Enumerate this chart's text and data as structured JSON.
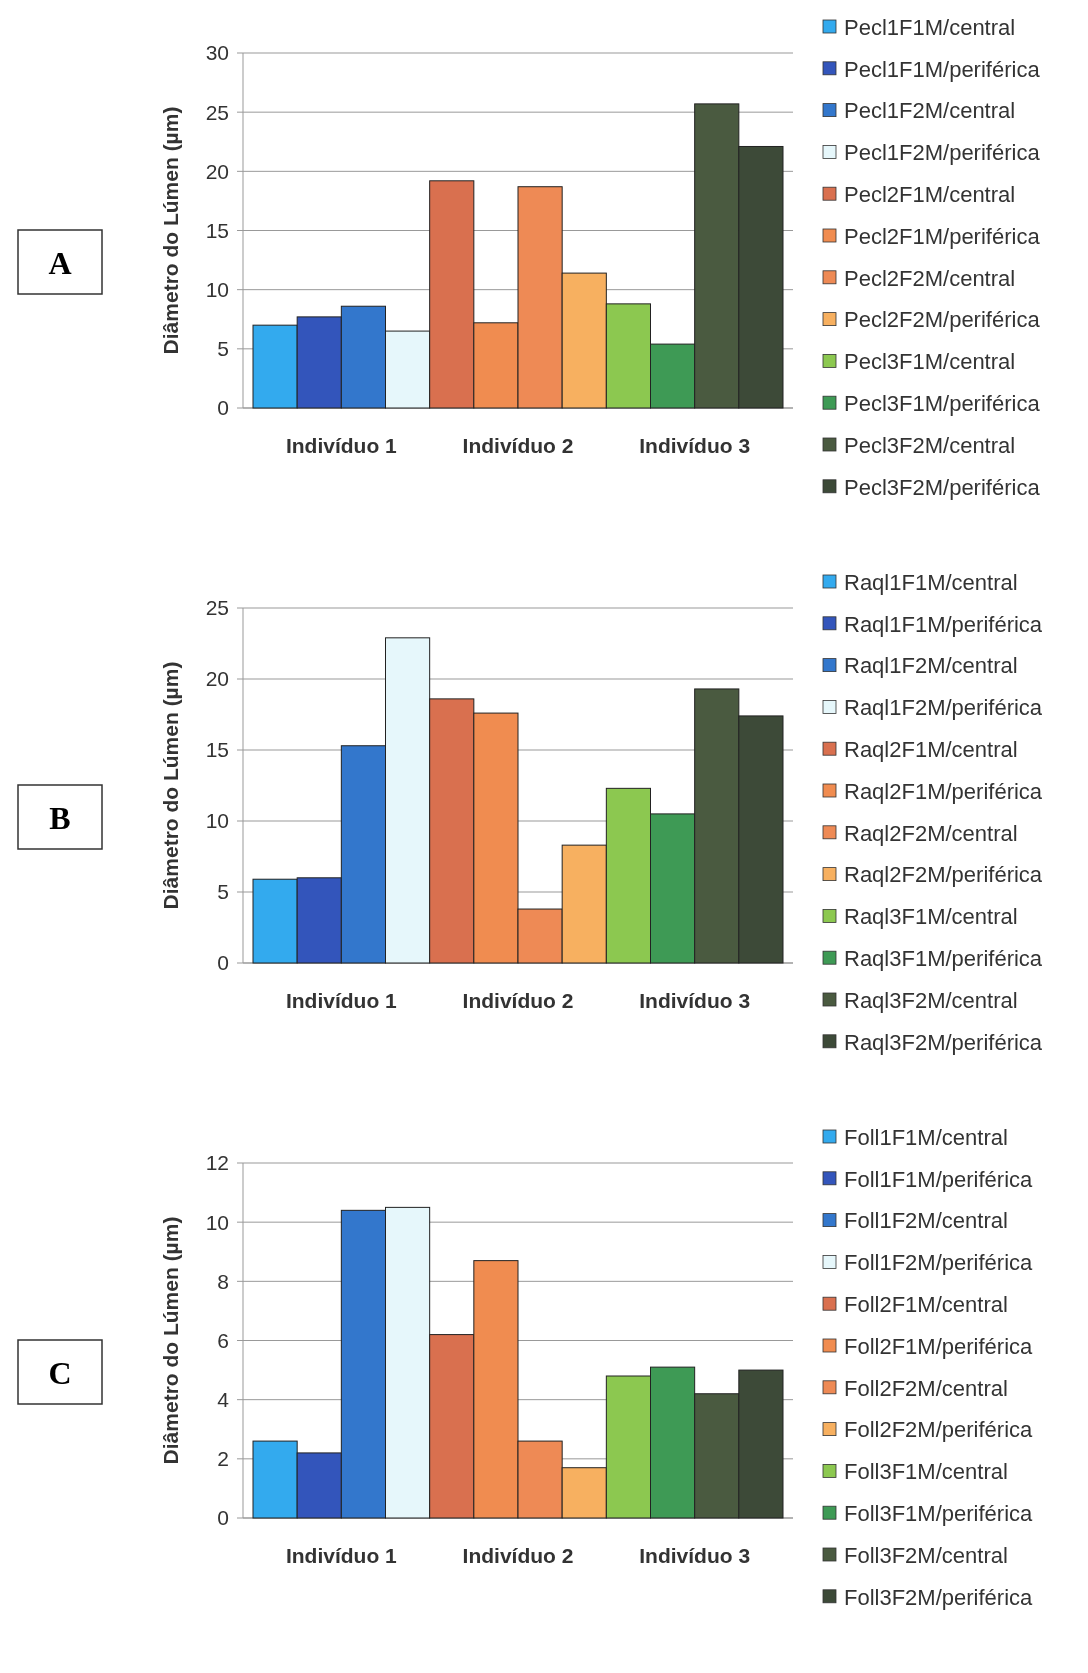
{
  "chart_data": [
    {
      "type": "bar",
      "title": "A",
      "ylabel": "Diâmetro do Lúmen (µm)",
      "categories": [
        "Indivíduo 1",
        "Indivíduo 2",
        "Indivíduo 3"
      ],
      "ylim": [
        0,
        30
      ],
      "yticks": [
        0,
        5,
        10,
        15,
        20,
        25,
        30
      ],
      "grid": "y",
      "legend": "right",
      "series": [
        {
          "name": "Pecl1F1M/central",
          "color": "#33aaee",
          "values": [
            7.0,
            null,
            null
          ]
        },
        {
          "name": "Pecl1F1M/periférica",
          "color": "#3355bb",
          "values": [
            7.7,
            null,
            null
          ]
        },
        {
          "name": "Pecl1F2M/central",
          "color": "#3377cc",
          "values": [
            8.6,
            null,
            null
          ]
        },
        {
          "name": "Pecl1F2M/periférica",
          "color": "#e6f7fb",
          "values": [
            6.5,
            null,
            null
          ]
        },
        {
          "name": "Pecl2F1M/central",
          "color": "#d9704f",
          "values": [
            null,
            19.2,
            null
          ]
        },
        {
          "name": "Pecl2F1M/periférica",
          "color": "#f08c50",
          "values": [
            null,
            7.2,
            null
          ]
        },
        {
          "name": "Pecl2F2M/central",
          "color": "#ee8a55",
          "values": [
            null,
            18.7,
            null
          ]
        },
        {
          "name": "Pecl2F2M/periférica",
          "color": "#f7b060",
          "values": [
            null,
            11.4,
            null
          ]
        },
        {
          "name": "Pecl3F1M/central",
          "color": "#8cc850",
          "values": [
            null,
            null,
            8.8
          ]
        },
        {
          "name": "Pecl3F1M/periférica",
          "color": "#3e9a55",
          "values": [
            null,
            null,
            5.4
          ]
        },
        {
          "name": "Pecl3F2M/central",
          "color": "#4a5a40",
          "values": [
            null,
            null,
            25.7
          ]
        },
        {
          "name": "Pecl3F2M/periférica",
          "color": "#3d4a38",
          "values": [
            null,
            null,
            22.1
          ]
        }
      ]
    },
    {
      "type": "bar",
      "title": "B",
      "ylabel": "Diâmetro do Lúmen (µm)",
      "categories": [
        "Indivíduo 1",
        "Indivíduo 2",
        "Indivíduo 3"
      ],
      "ylim": [
        0,
        25
      ],
      "yticks": [
        0,
        5,
        10,
        15,
        20,
        25
      ],
      "grid": "y",
      "legend": "right",
      "series": [
        {
          "name": "Raql1F1M/central",
          "color": "#33aaee",
          "values": [
            5.9,
            null,
            null
          ]
        },
        {
          "name": "Raql1F1M/periférica",
          "color": "#3355bb",
          "values": [
            6.0,
            null,
            null
          ]
        },
        {
          "name": "Raql1F2M/central",
          "color": "#3377cc",
          "values": [
            15.3,
            null,
            null
          ]
        },
        {
          "name": "Raql1F2M/periférica",
          "color": "#e6f7fb",
          "values": [
            22.9,
            null,
            null
          ]
        },
        {
          "name": "Raql2F1M/central",
          "color": "#d9704f",
          "values": [
            null,
            18.6,
            null
          ]
        },
        {
          "name": "Raql2F1M/periférica",
          "color": "#f08c50",
          "values": [
            null,
            17.6,
            null
          ]
        },
        {
          "name": "Raql2F2M/central",
          "color": "#ee8a55",
          "values": [
            null,
            3.8,
            null
          ]
        },
        {
          "name": "Raql2F2M/periférica",
          "color": "#f7b060",
          "values": [
            null,
            8.3,
            null
          ]
        },
        {
          "name": "Raql3F1M/central",
          "color": "#8cc850",
          "values": [
            null,
            null,
            12.3
          ]
        },
        {
          "name": "Raql3F1M/periférica",
          "color": "#3e9a55",
          "values": [
            null,
            null,
            10.5
          ]
        },
        {
          "name": "Raql3F2M/central",
          "color": "#4a5a40",
          "values": [
            null,
            null,
            19.3
          ]
        },
        {
          "name": "Raql3F2M/periférica",
          "color": "#3d4a38",
          "values": [
            null,
            null,
            17.4
          ]
        }
      ]
    },
    {
      "type": "bar",
      "title": "C",
      "ylabel": "Diâmetro do Lúmen (µm)",
      "categories": [
        "Indivíduo 1",
        "Indivíduo 2",
        "Indivíduo 3"
      ],
      "ylim": [
        0,
        12
      ],
      "yticks": [
        0,
        2,
        4,
        6,
        8,
        10,
        12
      ],
      "grid": "y",
      "legend": "right",
      "series": [
        {
          "name": "Foll1F1M/central",
          "color": "#33aaee",
          "values": [
            2.6,
            null,
            null
          ]
        },
        {
          "name": "Foll1F1M/periférica",
          "color": "#3355bb",
          "values": [
            2.2,
            null,
            null
          ]
        },
        {
          "name": "Foll1F2M/central",
          "color": "#3377cc",
          "values": [
            10.4,
            null,
            null
          ]
        },
        {
          "name": "Foll1F2M/periférica",
          "color": "#e6f7fb",
          "values": [
            10.5,
            null,
            null
          ]
        },
        {
          "name": "Foll2F1M/central",
          "color": "#d9704f",
          "values": [
            null,
            6.2,
            null
          ]
        },
        {
          "name": "Foll2F1M/periférica",
          "color": "#f08c50",
          "values": [
            null,
            8.7,
            null
          ]
        },
        {
          "name": "Foll2F2M/central",
          "color": "#ee8a55",
          "values": [
            null,
            2.6,
            null
          ]
        },
        {
          "name": "Foll2F2M/periférica",
          "color": "#f7b060",
          "values": [
            null,
            1.7,
            null
          ]
        },
        {
          "name": "Foll3F1M/central",
          "color": "#8cc850",
          "values": [
            null,
            null,
            4.8
          ]
        },
        {
          "name": "Foll3F1M/periférica",
          "color": "#3e9a55",
          "values": [
            null,
            null,
            5.1
          ]
        },
        {
          "name": "Foll3F2M/central",
          "color": "#4a5a40",
          "values": [
            null,
            null,
            4.2
          ]
        },
        {
          "name": "Foll3F2M/periférica",
          "color": "#3d4a38",
          "values": [
            null,
            null,
            5.0
          ]
        }
      ]
    }
  ]
}
